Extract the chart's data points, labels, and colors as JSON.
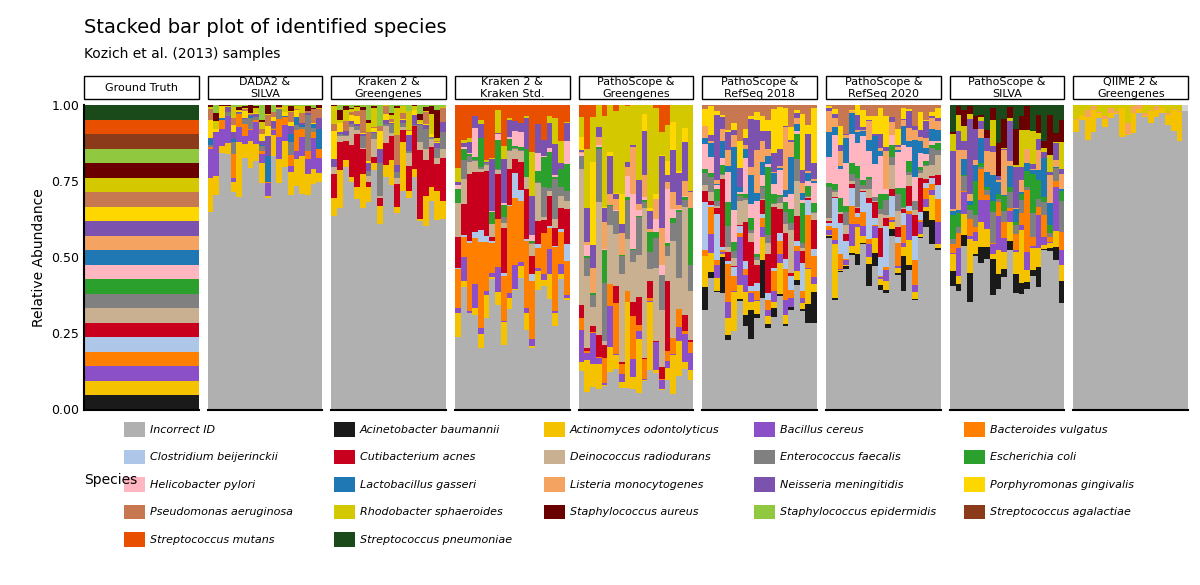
{
  "title": "Stacked bar plot of identified species",
  "subtitle": "Kozich et al. (2013) samples",
  "ylabel": "Relative Abundance",
  "panel_labels": [
    "Ground Truth",
    "DADA2 &\nSILVA",
    "Kraken 2 &\nGreengenes",
    "Kraken 2 &\nKraken Std.",
    "PathoScope &\nGreengenes",
    "PathoScope &\nRefSeq 2018",
    "PathoScope &\nRefSeq 2020",
    "PathoScope &\nSILVA",
    "QIIME 2 &\nGreengenes"
  ],
  "species_names": [
    "Incorrect ID",
    "Acinetobacter baumannii",
    "Actinomyces odontolyticus",
    "Bacillus cereus",
    "Bacteroides vulgatus",
    "Clostridium beijerinckii",
    "Cutibacterium acnes",
    "Deinococcus radiodurans",
    "Enterococcus faecalis",
    "Escherichia coli",
    "Helicobacter pylori",
    "Lactobacillus gasseri",
    "Listeria monocytogenes",
    "Neisseria meningitidis",
    "Porphyromonas gingivalis",
    "Pseudomonas aeruginosa",
    "Rhodobacter sphaeroides",
    "Staphylococcus aureus",
    "Staphylococcus epidermidis",
    "Streptococcus agalactiae",
    "Streptococcus mutans",
    "Streptococcus pneumoniae"
  ],
  "species_colors": [
    "#b0b0b0",
    "#1a1a1a",
    "#f5c200",
    "#8b4fc8",
    "#ff7f00",
    "#aec6e8",
    "#c8001e",
    "#c8b090",
    "#808080",
    "#2ca02c",
    "#ffb6c1",
    "#1f77b4",
    "#f4a460",
    "#7b52ae",
    "#ffd700",
    "#c87850",
    "#d4c800",
    "#6b0000",
    "#90c840",
    "#8b3a1a",
    "#e85000",
    "#1a4a1a"
  ],
  "n_samples": 20,
  "background_color": "#ffffff"
}
